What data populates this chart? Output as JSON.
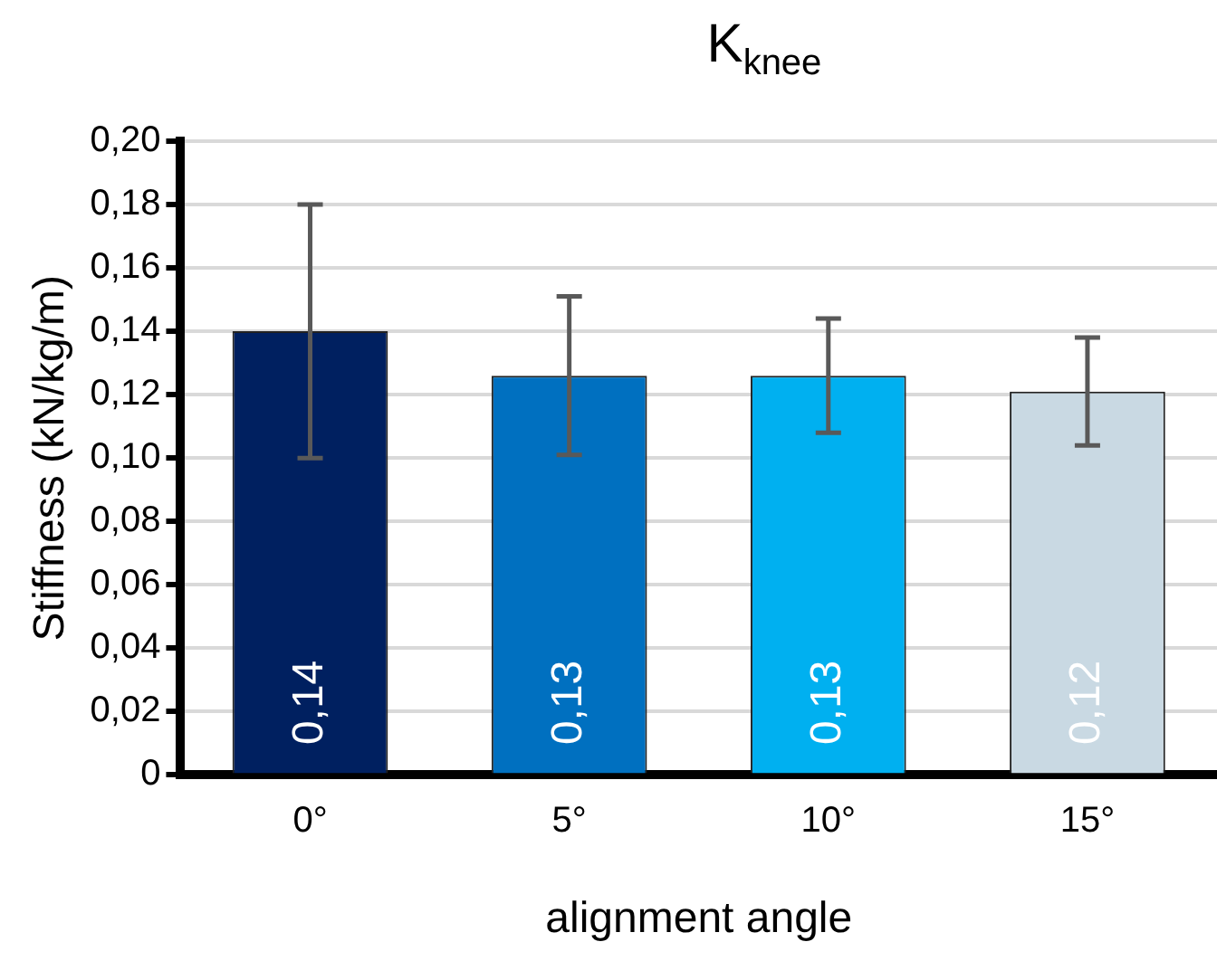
{
  "chart_data": {
    "type": "bar",
    "title": "K$_{knee}$",
    "xlabel": "alignment angle",
    "ylabel": "Stiffness (kN/kg/m)",
    "categories": [
      "0°",
      "5°",
      "10°",
      "15°"
    ],
    "values": [
      0.14,
      0.126,
      0.126,
      0.121
    ],
    "errors": [
      0.04,
      0.025,
      0.018,
      0.017
    ],
    "colors": [
      "#002060",
      "#0070c0",
      "#00b0f0",
      "#c9d9e3"
    ],
    "value_labels": [
      "0,14",
      "0,13",
      "0,13",
      "0,12"
    ],
    "ylim": [
      0,
      0.2
    ],
    "yticks": [
      0,
      {
        "value": 0.02,
        "label": "0,02"
      },
      {
        "value": 0.04,
        "label": "0,04"
      },
      {
        "value": 0.06,
        "label": "0,06"
      },
      {
        "value": 0.08,
        "label": "0,08"
      },
      {
        "value": 0.1,
        "label": "0,10"
      },
      {
        "value": 0.12,
        "label": "0,12"
      },
      {
        "value": 0.14,
        "label": "0,14"
      },
      {
        "value": 0.16,
        "label": "0,16"
      },
      {
        "value": 0.18,
        "label": "0,18"
      },
      {
        "value": 0.2,
        "label": "0,20"
      }
    ],
    "grid": "y",
    "legend": false
  }
}
